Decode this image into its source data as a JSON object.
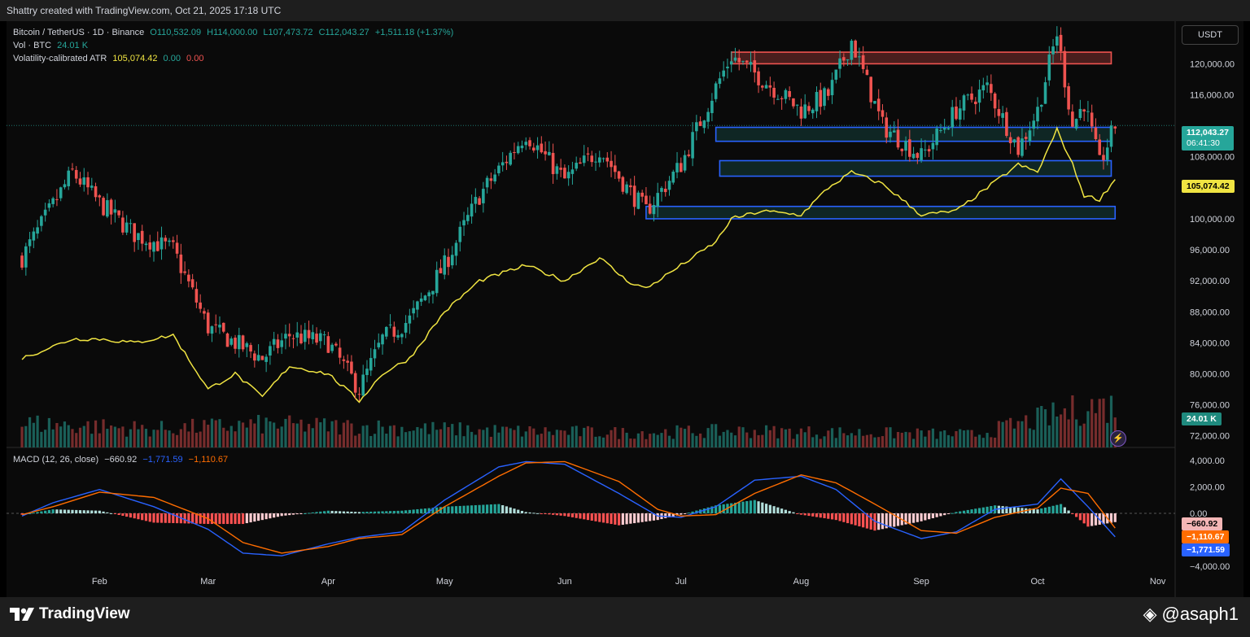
{
  "header": {
    "text": "Shattry created with TradingView.com, Oct 21, 2025 17:18 UTC"
  },
  "legend": {
    "symbol": "Bitcoin / TetherUS · 1D · Binance",
    "open": "O110,532.09",
    "high": "H114,000.00",
    "low": "L107,473.72",
    "close": "C112,043.27",
    "change": "+1,511.18 (+1.37%)",
    "vol_label": "Vol · BTC",
    "vol_value": "24.01 K",
    "atr_label": "Volatility-calibrated ATR",
    "atr_value": "105,074.42",
    "atr_v2": "0.00",
    "atr_v3": "0.00",
    "macd_label": "MACD (12, 26, close)",
    "macd_hist": "−660.92",
    "macd_line": "−1,771.59",
    "macd_signal": "−1,110.67"
  },
  "currency_button": "USDT",
  "tags": {
    "price": "112,043.27",
    "countdown": "06:41:30",
    "atr": "105,074.42",
    "volume": "24.01 K",
    "macd_hist": "−660.92",
    "macd_signal": "−1,110.67",
    "macd_line": "−1,771.59"
  },
  "footer": {
    "brand": "TradingView",
    "handle": "@asaph1"
  },
  "colors": {
    "up": "#26a69a",
    "down": "#ef5350",
    "atr": "#f0e442",
    "macd": "#2962ff",
    "signal": "#ff6d00",
    "zone_blue": "#2962ff",
    "zone_red": "#ef5350"
  },
  "chart_data": [
    {
      "type": "line",
      "title": "Bitcoin / TetherUS · 1D · Binance",
      "x": [
        "Jan 12",
        "Jan 25",
        "Feb 1",
        "Feb 10",
        "Feb 20",
        "Mar 1",
        "Mar 8",
        "Mar 15",
        "Mar 22",
        "Apr 1",
        "Apr 9",
        "Apr 15",
        "Apr 22",
        "May 1",
        "May 10",
        "May 22",
        "Jun 1",
        "Jun 10",
        "Jun 17",
        "Jun 22",
        "Jul 1",
        "Jul 10",
        "Jul 14",
        "Jul 22",
        "Aug 1",
        "Aug 8",
        "Aug 14",
        "Aug 22",
        "Sep 1",
        "Sep 10",
        "Sep 18",
        "Sep 26",
        "Oct 1",
        "Oct 6",
        "Oct 10",
        "Oct 13",
        "Oct 17",
        "Oct 21"
      ],
      "series": [
        {
          "values": [
            95000,
            106000,
            102000,
            98000,
            96000,
            86000,
            84000,
            82000,
            85000,
            84000,
            78000,
            84500,
            87000,
            94000,
            103000,
            111000,
            105000,
            109000,
            104000,
            101000,
            107000,
            117000,
            121000,
            118000,
            114000,
            116000,
            123000,
            112000,
            108000,
            114000,
            117000,
            109000,
            114000,
            124000,
            112000,
            115000,
            107000,
            112043
          ]
        },
        {
          "values": [
            82000,
            84500,
            84500,
            84000,
            85000,
            78000,
            80000,
            77000,
            81000,
            80000,
            76500,
            80000,
            82000,
            88000,
            92000,
            94000,
            92000,
            95000,
            92000,
            91000,
            94000,
            97000,
            100000,
            101000,
            100500,
            104000,
            106000,
            104500,
            100500,
            101000,
            104000,
            107000,
            106000,
            111500,
            107000,
            103000,
            102500,
            105074
          ]
        }
      ],
      "legend": [
        "Volatility-calibrated ATR"
      ],
      "y_ticks": [
        "120,000.00",
        "116,000.00",
        "108,000.00",
        "104,000.00",
        "100,000.00",
        "96,000.00",
        "92,000.00",
        "88,000.00",
        "84,000.00",
        "80,000.00",
        "76,000.00",
        "72,000.00"
      ],
      "x_ticks": [
        "Feb",
        "Mar",
        "Apr",
        "May",
        "Jun",
        "Jul",
        "Aug",
        "Sep",
        "Oct",
        "Nov"
      ],
      "ylim": [
        70500,
        125500
      ],
      "zones": [
        {
          "color": "red",
          "from": 120000,
          "to": 121500,
          "start": "Jul 14",
          "end": "Oct 20"
        },
        {
          "color": "blue",
          "from": 110000,
          "to": 111800,
          "start": "Jul 10",
          "end": "Oct 20"
        },
        {
          "color": "blue",
          "from": 105500,
          "to": 107500,
          "start": "Jul 11",
          "end": "Oct 20"
        },
        {
          "color": "blue",
          "from": 100000,
          "to": 101600,
          "start": "Jun 22",
          "end": "Oct 21"
        }
      ]
    },
    {
      "type": "bar",
      "title": "Vol · BTC",
      "x": [
        "Jan",
        "Feb",
        "Mar",
        "Apr",
        "May",
        "Jun",
        "Jul",
        "Aug",
        "Sep",
        "Oct"
      ],
      "values": [
        26,
        20,
        25,
        22,
        18,
        16,
        18,
        16,
        14,
        45
      ],
      "unit": "K"
    },
    {
      "type": "line",
      "title": "MACD (12, 26, close)",
      "x": [
        "Jan 12",
        "Jan 20",
        "Feb 1",
        "Feb 15",
        "Mar 1",
        "Mar 10",
        "Mar 20",
        "Apr 1",
        "Apr 9",
        "Apr 20",
        "May 1",
        "May 15",
        "May 22",
        "Jun 1",
        "Jun 15",
        "Jun 25",
        "Jul 1",
        "Jul 10",
        "Jul 20",
        "Aug 1",
        "Aug 10",
        "Aug 20",
        "Sep 1",
        "Sep 10",
        "Sep 20",
        "Oct 1",
        "Oct 7",
        "Oct 14",
        "Oct 21"
      ],
      "series": [
        {
          "name": "MACD",
          "values": [
            -200,
            800,
            1800,
            500,
            -1200,
            -3000,
            -3200,
            -2300,
            -1800,
            -1400,
            1000,
            3500,
            3900,
            3700,
            1500,
            -200,
            -300,
            500,
            2500,
            2800,
            1800,
            -600,
            -1900,
            -1400,
            300,
            700,
            2600,
            500,
            -1771.59
          ]
        },
        {
          "name": "Signal",
          "values": [
            -100,
            500,
            1600,
            1200,
            -400,
            -2200,
            -3000,
            -2500,
            -1900,
            -1600,
            500,
            2800,
            3800,
            3900,
            2400,
            300,
            -200,
            -100,
            1500,
            2900,
            2300,
            700,
            -1300,
            -1500,
            -300,
            400,
            1900,
            1500,
            -1110.67
          ]
        }
      ],
      "histogram": [
        -100,
        300,
        200,
        -700,
        -800,
        -800,
        -200,
        200,
        100,
        200,
        500,
        700,
        100,
        -200,
        -900,
        -500,
        -100,
        600,
        1000,
        -100,
        -500,
        -1300,
        -600,
        100,
        600,
        300,
        700,
        -1000,
        -660.92
      ],
      "y_ticks": [
        "4,000.00",
        "2,000.00",
        "0.00",
        "−4,000.00"
      ],
      "ylim": [
        -4600,
        4600
      ]
    }
  ]
}
